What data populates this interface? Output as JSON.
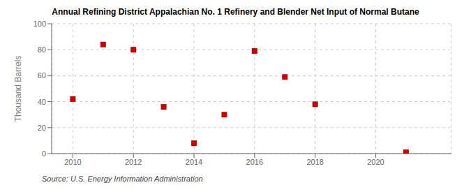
{
  "chart_data": {
    "type": "scatter",
    "title": "Annual Refining District Appalachian No. 1 Refinery and Blender Net Input of Normal Butane",
    "ylabel": "Thousand Barrels",
    "annotations": [
      "Source: U.S. Energy Information Administration"
    ],
    "x": [
      2010,
      2011,
      2012,
      2013,
      2014,
      2015,
      2016,
      2017,
      2018,
      2021
    ],
    "values": [
      42,
      84,
      80,
      36,
      8,
      30,
      79,
      59,
      38,
      1
    ],
    "color": "#CC0000",
    "marker": "square",
    "xlim": [
      2009.3,
      2022.5
    ],
    "ylim": [
      0,
      100
    ],
    "xticks": [
      2010,
      2012,
      2014,
      2016,
      2018,
      2020
    ],
    "yticks": [
      0,
      20,
      40,
      60,
      80,
      100
    ],
    "grid": true
  }
}
